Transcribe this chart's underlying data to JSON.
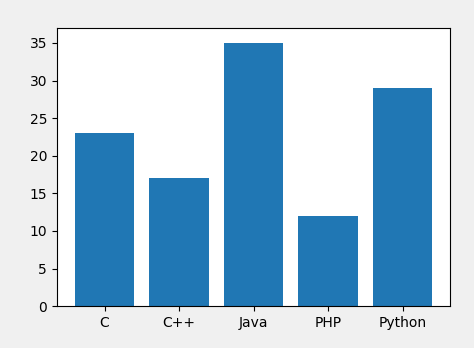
{
  "categories": [
    "C",
    "C++",
    "Java",
    "PHP",
    "Python"
  ],
  "values": [
    23,
    17,
    35,
    12,
    29
  ],
  "bar_color": "#2077b4",
  "ylim": [
    0,
    37
  ],
  "yticks": [
    0,
    5,
    10,
    15,
    20,
    25,
    30,
    35
  ],
  "axes_facecolor": "#ffffff",
  "figure_facecolor": "#f0f0f0",
  "bar_width": 0.8
}
